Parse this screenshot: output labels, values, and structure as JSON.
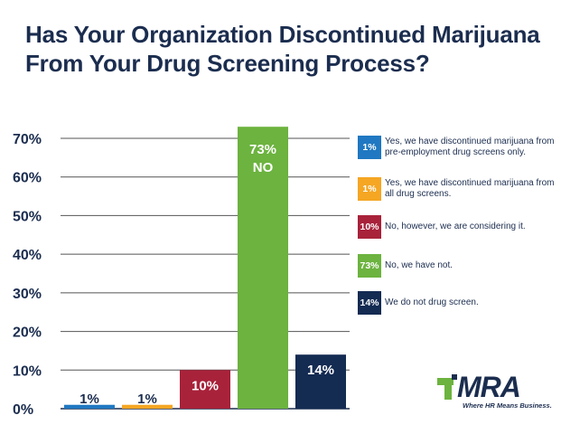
{
  "title": "Has Your Organization Discontinued Marijuana From Your Drug Screening Process?",
  "chart_data": {
    "type": "bar",
    "title": "Has Your Organization Discontinued Marijuana From Your Drug Screening Process?",
    "xlabel": "",
    "ylabel": "",
    "ylim": [
      0,
      70
    ],
    "yticks": [
      "0%",
      "10%",
      "20%",
      "30%",
      "40%",
      "50%",
      "60%",
      "70%"
    ],
    "grid": true,
    "legend_position": "right",
    "categories": [
      "Yes, we have discontinued marijuana from pre-employment drug screens only.",
      "Yes, we have discontinued marijuana from all drug screens.",
      "No, however, we are considering it.",
      "No, we have not.",
      "We do not drug screen."
    ],
    "values": [
      1,
      1,
      10,
      73,
      14
    ],
    "data_labels": [
      "1%",
      "1%",
      "10%",
      "73%",
      "14%"
    ],
    "bar_sublabels": [
      "",
      "",
      "",
      "NO",
      ""
    ],
    "colors": [
      "#1f78c1",
      "#f5a623",
      "#a8223a",
      "#6cb33f",
      "#142b52"
    ]
  },
  "legend": [
    {
      "badge": "1%",
      "text": "Yes, we have discontinued marijuana from pre-employment drug screens only.",
      "color": "#1f78c1"
    },
    {
      "badge": "1%",
      "text": "Yes, we have discontinued marijuana from all drug screens.",
      "color": "#f5a623"
    },
    {
      "badge": "10%",
      "text": "No, however, we are considering it.",
      "color": "#a8223a"
    },
    {
      "badge": "73%",
      "text": "No, we have not.",
      "color": "#6cb33f"
    },
    {
      "badge": "14%",
      "text": "We do not drug screen.",
      "color": "#142b52"
    }
  ],
  "logo": {
    "word": "MRA",
    "tagline": "Where HR Means Business.",
    "color_navy": "#1b2d4f",
    "color_green": "#6cb33f"
  }
}
